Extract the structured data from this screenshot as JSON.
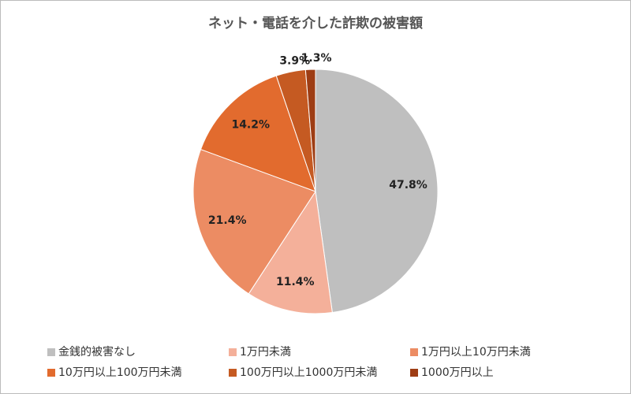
{
  "chart_data": {
    "type": "pie",
    "title": "ネット・電話を介した詐欺の被害額",
    "categories": [
      "金銭的被害なし",
      "1万円未満",
      "1万円以上10万円未満",
      "10万円以上100万円未満",
      "100万円以上1000万円未満",
      "1000万円以上"
    ],
    "values": [
      47.8,
      11.4,
      21.4,
      14.2,
      3.9,
      1.3
    ],
    "value_labels": [
      "47.8%",
      "11.4%",
      "21.4%",
      "14.2%",
      "3.9%",
      "1.3%"
    ],
    "colors": [
      "#bfbfbf",
      "#f4b09a",
      "#ec8c63",
      "#e26b2e",
      "#c55a22",
      "#9e3d14"
    ],
    "legend": "bottom"
  }
}
